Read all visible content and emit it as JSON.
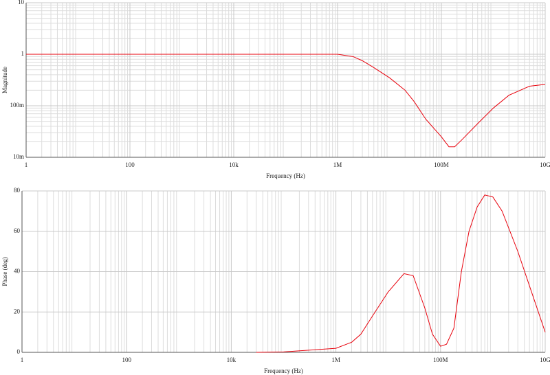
{
  "chart_data": [
    {
      "type": "line",
      "x_log": true,
      "y_log": true,
      "grid": true,
      "color": "#e8000b",
      "xlabel": "Frequency (Hz)",
      "ylabel": "Magnitude",
      "x": [
        1,
        1000000,
        2000000,
        3000000,
        5000000,
        10000000,
        20000000,
        30000000,
        50000000,
        100000000,
        140000000,
        180000000,
        250000000,
        500000000,
        1000000000,
        2000000000,
        5000000000,
        10000000000
      ],
      "values": [
        1,
        1,
        0.9,
        0.75,
        0.55,
        0.35,
        0.2,
        0.12,
        0.055,
        0.025,
        0.016,
        0.016,
        0.022,
        0.045,
        0.09,
        0.16,
        0.24,
        0.26
      ],
      "xlim": [
        1,
        10000000000
      ],
      "xticks": [
        1,
        100,
        {
          "value": 10000,
          "label": "10k"
        },
        {
          "value": 1000000,
          "label": "1M"
        },
        {
          "value": 100000000,
          "label": "100M"
        },
        {
          "value": 10000000000,
          "label": "10G"
        }
      ],
      "ylim": [
        0.01,
        10
      ],
      "yticks": [
        {
          "value": 0.01,
          "label": "10m"
        },
        {
          "value": 0.1,
          "label": "100m"
        },
        1,
        10
      ]
    },
    {
      "type": "line",
      "x_log": true,
      "y_log": false,
      "grid": true,
      "color": "#e8000b",
      "xlabel": "Frequency (Hz)",
      "ylabel": "Phase (deg)",
      "x": [
        30000,
        100000,
        1000000,
        2000000,
        3000000,
        5000000,
        10000000,
        20000000,
        30000000,
        50000000,
        70000000,
        100000000,
        130000000,
        180000000,
        250000000,
        350000000,
        500000000,
        700000000,
        1000000000,
        1500000000,
        3000000000,
        5000000000,
        10000000000
      ],
      "values": [
        0,
        0.2,
        2,
        5,
        9,
        18,
        30,
        39,
        38,
        22,
        9,
        3,
        4,
        12,
        40,
        60,
        72,
        78,
        77,
        70,
        50,
        33,
        10
      ],
      "xlim": [
        1,
        10000000000
      ],
      "xticks": [
        1,
        100,
        {
          "value": 10000,
          "label": "10k"
        },
        {
          "value": 1000000,
          "label": "1M"
        },
        {
          "value": 100000000,
          "label": "100M"
        },
        {
          "value": 10000000000,
          "label": "10G"
        }
      ],
      "ylim": [
        0,
        80
      ],
      "yticks": [
        0,
        20,
        40,
        60,
        80
      ]
    }
  ]
}
